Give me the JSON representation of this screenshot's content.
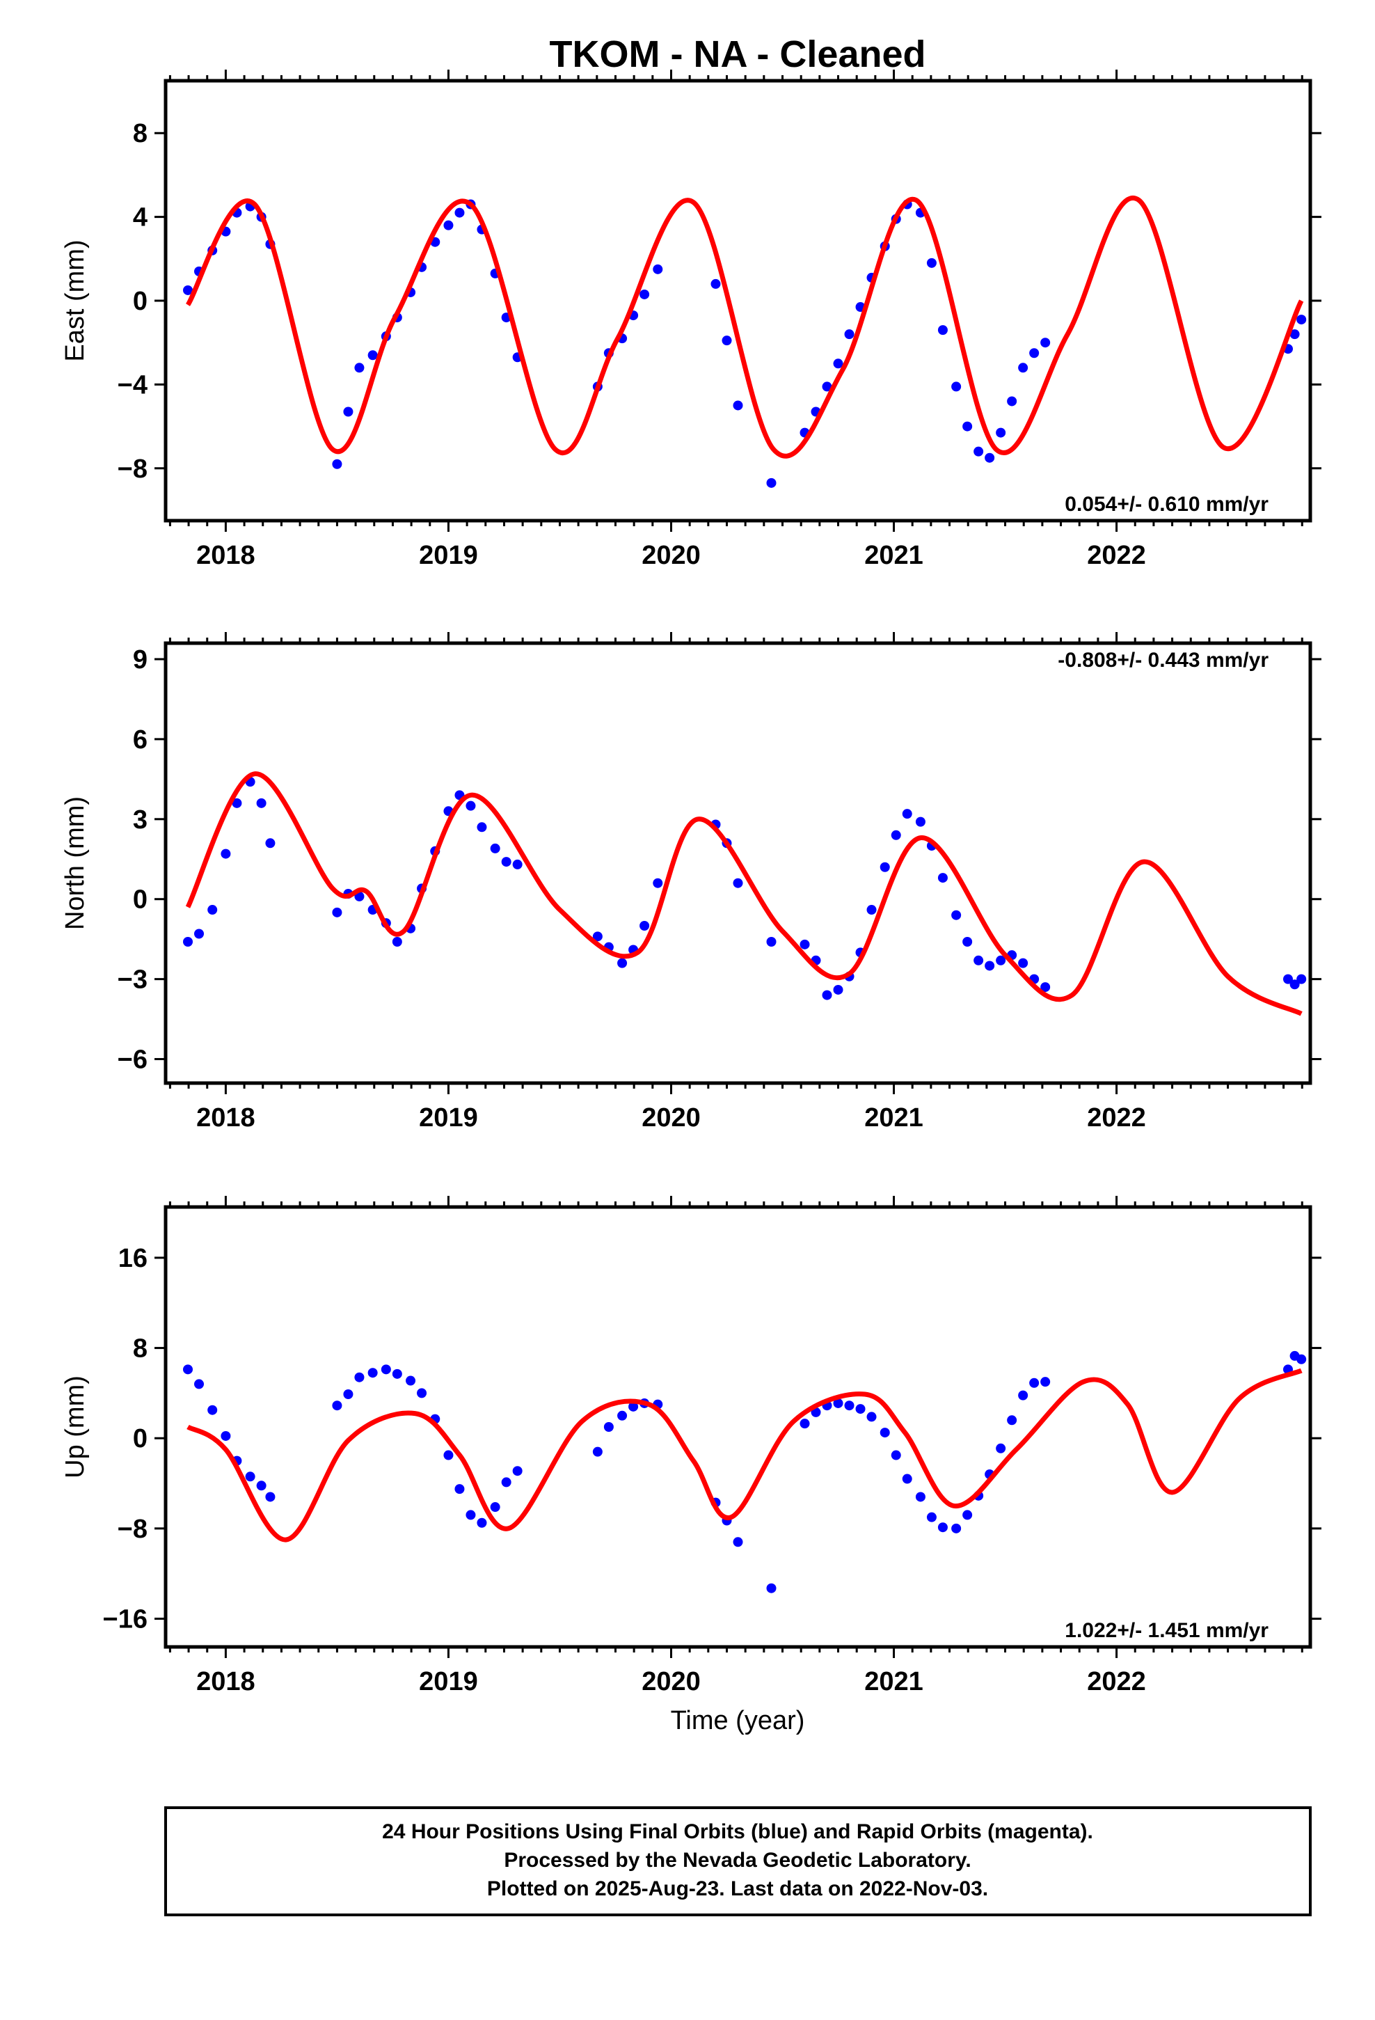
{
  "chart_data": {
    "type": "scatter",
    "title": "TKOM  - NA - Cleaned",
    "xlabel": "Time (year)",
    "xlim": [
      2017.73,
      2022.87
    ],
    "xticks": [
      2018,
      2019,
      2020,
      2021,
      2022
    ],
    "tick_labels": [
      "2018",
      "2019",
      "2020",
      "2021",
      "2022"
    ],
    "legend_lines": [
      "24 Hour Positions Using Final Orbits (blue) and Rapid Orbits (magenta).",
      "Processed by the Nevada Geodetic Laboratory.",
      "Plotted on 2025-Aug-23. Last data on 2022-Nov-03."
    ],
    "colors": {
      "data": "#0000ff",
      "model": "#ff0000"
    },
    "panels": [
      {
        "id": "east",
        "ylabel": "East (mm)",
        "ylim": [
          -10.5,
          10.5
        ],
        "yticks": [
          -8,
          -4,
          0,
          4,
          8
        ],
        "ytick_labels": [
          "−8",
          "−4",
          "0",
          "4",
          "8"
        ],
        "rate": "0.054+/- 0.610 mm/yr",
        "rate_position": "bottom-right",
        "series": [
          {
            "name": "Final Orbits",
            "color": "#0000ff",
            "x": [
              2017.83,
              2017.88,
              2017.94,
              2018.0,
              2018.05,
              2018.11,
              2018.16,
              2018.2,
              2018.5,
              2018.55,
              2018.6,
              2018.66,
              2018.72,
              2018.77,
              2018.83,
              2018.88,
              2018.94,
              2019.0,
              2019.05,
              2019.1,
              2019.15,
              2019.21,
              2019.26,
              2019.31,
              2019.67,
              2019.72,
              2019.78,
              2019.83,
              2019.88,
              2019.94,
              2020.2,
              2020.25,
              2020.3,
              2020.45,
              2020.6,
              2020.65,
              2020.7,
              2020.75,
              2020.8,
              2020.85,
              2020.9,
              2020.96,
              2021.01,
              2021.06,
              2021.12,
              2021.17,
              2021.22,
              2021.28,
              2021.33,
              2021.38,
              2021.43,
              2021.48,
              2021.53,
              2021.58,
              2021.63,
              2021.68,
              2022.77,
              2022.8,
              2022.83
            ],
            "y": [
              0.5,
              1.4,
              2.4,
              3.3,
              4.2,
              4.5,
              4.0,
              2.7,
              -7.8,
              -5.3,
              -3.2,
              -2.6,
              -1.7,
              -0.8,
              0.4,
              1.6,
              2.8,
              3.6,
              4.2,
              4.6,
              3.4,
              1.3,
              -0.8,
              -2.7,
              -4.1,
              -2.5,
              -1.8,
              -0.7,
              0.3,
              1.5,
              0.8,
              -1.9,
              -5.0,
              -8.7,
              -6.3,
              -5.3,
              -4.1,
              -3.0,
              -1.6,
              -0.3,
              1.1,
              2.6,
              3.9,
              4.6,
              4.2,
              1.8,
              -1.4,
              -4.1,
              -6.0,
              -7.2,
              -7.5,
              -6.3,
              -4.8,
              -3.2,
              -2.5,
              -2.0,
              -2.3,
              -1.6,
              -0.9
            ]
          },
          {
            "name": "Model",
            "color": "#ff0000",
            "x": [
              2017.83,
              2018.13,
              2018.48,
              2018.76,
              2019.1,
              2019.48,
              2019.76,
              2020.1,
              2020.46,
              2020.77,
              2021.1,
              2021.46,
              2021.78,
              2022.1,
              2022.48,
              2022.83
            ],
            "y": [
              -0.2,
              4.6,
              -7.1,
              -0.8,
              4.6,
              -7.1,
              -1.8,
              4.7,
              -7.1,
              -3.3,
              4.8,
              -7.1,
              -1.6,
              4.8,
              -7.0,
              0.0
            ]
          }
        ]
      },
      {
        "id": "north",
        "ylabel": "North (mm)",
        "ylim": [
          -6.9,
          9.6
        ],
        "yticks": [
          -6,
          -3,
          0,
          3,
          6,
          9
        ],
        "ytick_labels": [
          "−6",
          "−3",
          "0",
          "3",
          "6",
          "9"
        ],
        "rate": "-0.808+/- 0.443 mm/yr",
        "rate_position": "top-right",
        "series": [
          {
            "name": "Final Orbits",
            "color": "#0000ff",
            "x": [
              2017.83,
              2017.88,
              2017.94,
              2018.0,
              2018.05,
              2018.11,
              2018.16,
              2018.2,
              2018.5,
              2018.55,
              2018.6,
              2018.66,
              2018.72,
              2018.77,
              2018.83,
              2018.88,
              2018.94,
              2019.0,
              2019.05,
              2019.1,
              2019.15,
              2019.21,
              2019.26,
              2019.31,
              2019.67,
              2019.72,
              2019.78,
              2019.83,
              2019.88,
              2019.94,
              2020.2,
              2020.25,
              2020.3,
              2020.45,
              2020.6,
              2020.65,
              2020.7,
              2020.75,
              2020.8,
              2020.85,
              2020.9,
              2020.96,
              2021.01,
              2021.06,
              2021.12,
              2021.17,
              2021.22,
              2021.28,
              2021.33,
              2021.38,
              2021.43,
              2021.48,
              2021.53,
              2021.58,
              2021.63,
              2021.68,
              2022.77,
              2022.8,
              2022.83
            ],
            "y": [
              -1.6,
              -1.3,
              -0.4,
              1.7,
              3.6,
              4.4,
              3.6,
              2.1,
              -0.5,
              0.2,
              0.1,
              -0.4,
              -0.9,
              -1.6,
              -1.1,
              0.4,
              1.8,
              3.3,
              3.9,
              3.5,
              2.7,
              1.9,
              1.4,
              1.3,
              -1.4,
              -1.8,
              -2.4,
              -1.9,
              -1.0,
              0.6,
              2.8,
              2.1,
              0.6,
              -1.6,
              -1.7,
              -2.3,
              -3.6,
              -3.4,
              -2.9,
              -2.0,
              -0.4,
              1.2,
              2.4,
              3.2,
              2.9,
              2.0,
              0.8,
              -0.6,
              -1.6,
              -2.3,
              -2.5,
              -2.3,
              -2.1,
              -2.4,
              -3.0,
              -3.3,
              -3.0,
              -3.2,
              -3.0
            ]
          },
          {
            "name": "Model",
            "color": "#ff0000",
            "x": [
              2017.83,
              2018.13,
              2018.48,
              2018.63,
              2018.8,
              2019.1,
              2019.5,
              2019.85,
              2020.12,
              2020.5,
              2020.8,
              2021.12,
              2021.5,
              2021.8,
              2022.12,
              2022.5,
              2022.83
            ],
            "y": [
              -0.3,
              4.7,
              0.4,
              0.3,
              -1.2,
              3.9,
              -0.4,
              -2.0,
              3.0,
              -1.2,
              -2.8,
              2.3,
              -2.1,
              -3.6,
              1.4,
              -2.9,
              -4.3
            ]
          }
        ]
      },
      {
        "id": "up",
        "ylabel": "Up (mm)",
        "ylim": [
          -18.5,
          20.5
        ],
        "yticks": [
          -16,
          -8,
          0,
          8,
          16
        ],
        "ytick_labels": [
          "−16",
          "−8",
          "0",
          "8",
          "16"
        ],
        "rate": "1.022+/- 1.451 mm/yr",
        "rate_position": "bottom-right",
        "series": [
          {
            "name": "Final Orbits",
            "color": "#0000ff",
            "x": [
              2017.83,
              2017.88,
              2017.94,
              2018.0,
              2018.05,
              2018.11,
              2018.16,
              2018.2,
              2018.5,
              2018.55,
              2018.6,
              2018.66,
              2018.72,
              2018.77,
              2018.83,
              2018.88,
              2018.94,
              2019.0,
              2019.05,
              2019.1,
              2019.15,
              2019.21,
              2019.26,
              2019.31,
              2019.67,
              2019.72,
              2019.78,
              2019.83,
              2019.88,
              2019.94,
              2020.2,
              2020.25,
              2020.3,
              2020.45,
              2020.6,
              2020.65,
              2020.7,
              2020.75,
              2020.8,
              2020.85,
              2020.9,
              2020.96,
              2021.01,
              2021.06,
              2021.12,
              2021.17,
              2021.22,
              2021.28,
              2021.33,
              2021.38,
              2021.43,
              2021.48,
              2021.53,
              2021.58,
              2021.63,
              2021.68,
              2022.77,
              2022.8,
              2022.83
            ],
            "y": [
              6.1,
              4.8,
              2.5,
              0.2,
              -2.0,
              -3.4,
              -4.2,
              -5.2,
              2.9,
              3.9,
              5.4,
              5.8,
              6.1,
              5.7,
              5.1,
              4.0,
              1.7,
              -1.5,
              -4.5,
              -6.8,
              -7.5,
              -6.1,
              -3.9,
              -2.9,
              -1.2,
              1.0,
              2.0,
              2.8,
              3.1,
              3.0,
              -5.7,
              -7.3,
              -9.2,
              -13.3,
              1.3,
              2.3,
              2.9,
              3.1,
              2.9,
              2.6,
              1.9,
              0.5,
              -1.5,
              -3.6,
              -5.2,
              -7.0,
              -7.9,
              -8.0,
              -6.8,
              -5.1,
              -3.2,
              -0.9,
              1.6,
              3.8,
              4.9,
              5.0,
              6.1,
              7.3,
              7.0
            ]
          },
          {
            "name": "Model",
            "color": "#ff0000",
            "x": [
              2017.83,
              2018.0,
              2018.27,
              2018.55,
              2018.85,
              2019.05,
              2019.27,
              2019.6,
              2019.9,
              2020.1,
              2020.27,
              2020.55,
              2020.87,
              2021.05,
              2021.27,
              2021.55,
              2021.85,
              2022.05,
              2022.25,
              2022.55,
              2022.83
            ],
            "y": [
              1.0,
              -1.0,
              -9.0,
              -0.2,
              2.2,
              -1.5,
              -8.0,
              1.5,
              3.0,
              -2.0,
              -7.0,
              1.5,
              3.9,
              0.5,
              -6.0,
              -1.0,
              5.0,
              3.0,
              -4.8,
              3.5,
              6.0
            ]
          }
        ]
      }
    ]
  }
}
